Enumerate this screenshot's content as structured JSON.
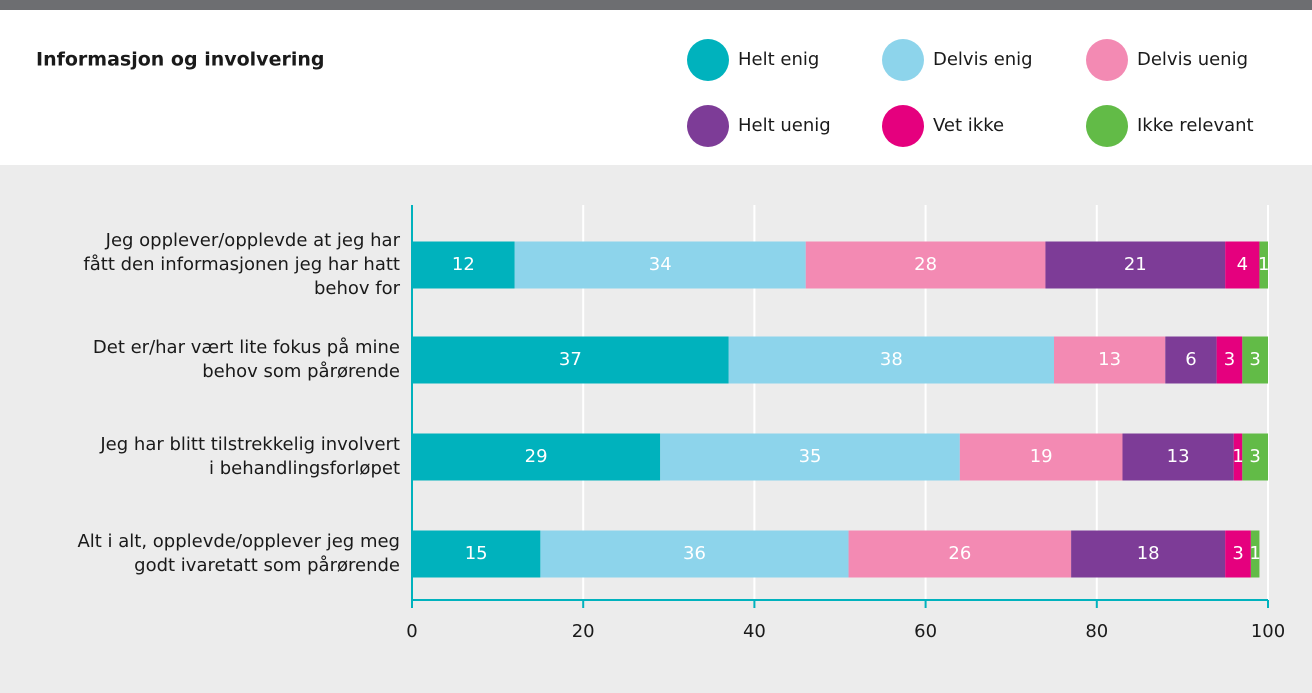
{
  "chart_data": {
    "type": "stacked-bar-horizontal",
    "title": "Informasjon og involvering",
    "categories": [
      "Jeg opplever/opplevde at jeg har\nfått den informasjonen jeg har hatt\nbehov for",
      "Det er/har vært lite fokus på mine\nbehov som pårørende",
      "Jeg har blitt tilstrekkelig involvert\ni behandlingsforløpet",
      "Alt i alt, opplevde/opplever jeg meg\ngodt ivaretatt som pårørende"
    ],
    "series": [
      {
        "name": "Helt enig",
        "color": "#00b2bd",
        "values": [
          12,
          37,
          29,
          15
        ]
      },
      {
        "name": "Delvis enig",
        "color": "#8dd4eb",
        "values": [
          34,
          38,
          35,
          36
        ]
      },
      {
        "name": "Delvis uenig",
        "color": "#f38ab3",
        "values": [
          28,
          13,
          19,
          26
        ]
      },
      {
        "name": "Helt uenig",
        "color": "#7d3c97",
        "values": [
          21,
          6,
          13,
          18
        ]
      },
      {
        "name": "Vet ikke",
        "color": "#e5007e",
        "values": [
          4,
          3,
          1,
          3
        ]
      },
      {
        "name": "Ikke relevant",
        "color": "#62bb47",
        "values": [
          1,
          3,
          3,
          1
        ]
      }
    ],
    "xlim": [
      0,
      100
    ],
    "xticks": [
      0,
      20,
      40,
      60,
      80,
      100
    ],
    "grid": true
  }
}
